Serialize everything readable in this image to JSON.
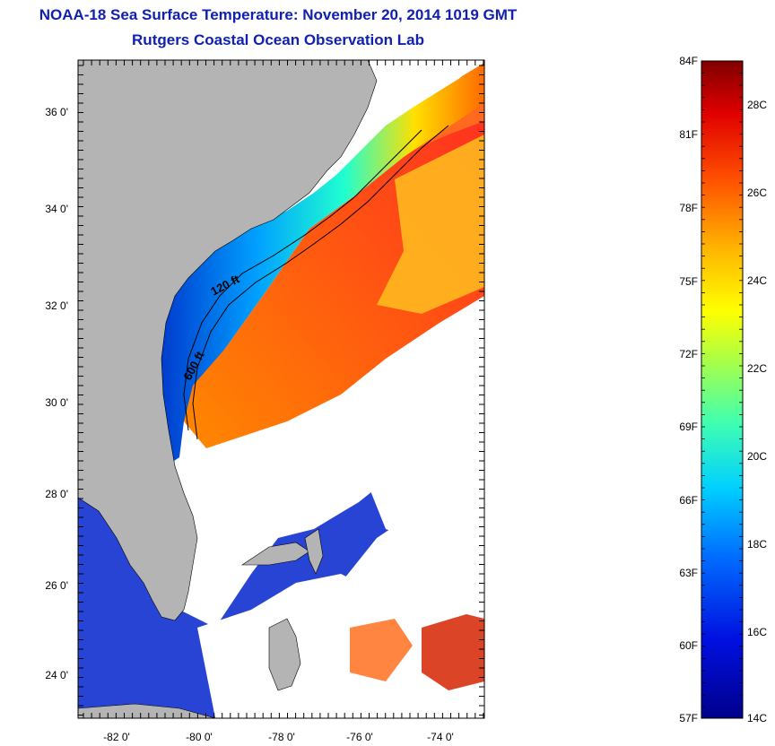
{
  "header": {
    "title": "NOAA-18 Sea Surface Temperature:  November 20, 2014 1019 GMT",
    "subtitle": "Rutgers Coastal Ocean Observation Lab"
  },
  "map": {
    "lon_ticks": [
      "-82 0'",
      "-80 0'",
      "-78 0'",
      "-76 0'",
      "-74 0'"
    ],
    "lat_ticks": [
      "36 0'",
      "34 0'",
      "32 0'",
      "30 0'",
      "28 0'",
      "26 0'",
      "24 0'"
    ],
    "contours": [
      {
        "label": "120 ft"
      },
      {
        "label": "600 ft"
      }
    ]
  },
  "colorbar": {
    "fahrenheit_labels": [
      "84F",
      "81F",
      "78F",
      "75F",
      "72F",
      "69F",
      "66F",
      "63F",
      "60F",
      "57F"
    ],
    "celsius_labels": [
      "28C",
      "26C",
      "24C",
      "22C",
      "20C",
      "18C",
      "16C",
      "14C"
    ]
  },
  "colors": {
    "title": "#1020b0",
    "land": "#b4b4b4",
    "cloud": "#ffffff"
  }
}
